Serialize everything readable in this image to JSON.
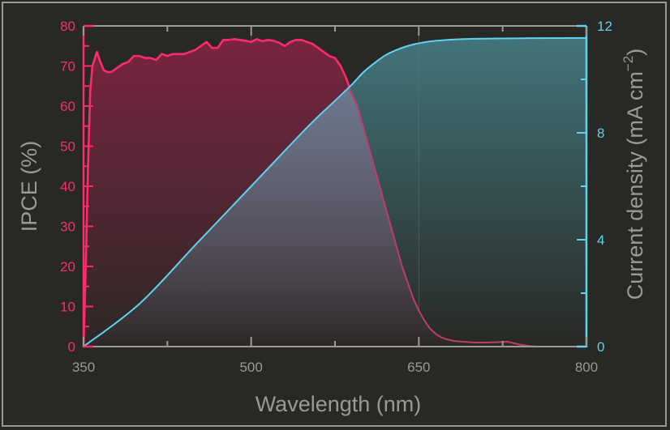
{
  "chart_data": {
    "type": "line",
    "title": "",
    "xlabel": "Wavelength (nm)",
    "ylabel_left": "IPCE (%)",
    "ylabel_right": "Current density (mA cm⁻²)",
    "ylabel_right_parts": {
      "base": "Current density (mA cm",
      "sup": "−2",
      "close": ")"
    },
    "xlim": [
      350,
      800
    ],
    "ylim_left": [
      0,
      80
    ],
    "ylim_right": [
      0,
      12
    ],
    "x_ticks": [
      350,
      500,
      650,
      800
    ],
    "x_minor_ticks": [
      425,
      575,
      725
    ],
    "y_left_ticks": [
      0,
      10,
      20,
      30,
      40,
      50,
      60,
      70,
      80
    ],
    "y_right_ticks": [
      0,
      4,
      8,
      12
    ],
    "y_right_minor_ticks": [
      2,
      6,
      10
    ],
    "grid": "vertical lines at major x ticks (500, 650)",
    "colors": {
      "background": "#282824",
      "ipce": "#ff2a6d",
      "ipce_fill_top": "#7a2440",
      "current": "#5fd3ee",
      "current_fill_top": "#3f7178",
      "axis": "#9a9a94"
    },
    "series": [
      {
        "name": "IPCE (%)",
        "axis": "left",
        "x": [
          350,
          352,
          354,
          356,
          358,
          362,
          365,
          368,
          371,
          375,
          380,
          385,
          390,
          395,
          400,
          405,
          410,
          415,
          420,
          425,
          430,
          435,
          440,
          445,
          450,
          455,
          460,
          465,
          470,
          475,
          480,
          485,
          490,
          495,
          500,
          505,
          510,
          515,
          520,
          525,
          530,
          535,
          540,
          545,
          550,
          555,
          560,
          565,
          570,
          575,
          580,
          585,
          590,
          595,
          600,
          605,
          610,
          615,
          620,
          625,
          630,
          635,
          640,
          645,
          650,
          655,
          660,
          665,
          670,
          675,
          680,
          685,
          690,
          695,
          700,
          710,
          720,
          730,
          740,
          750,
          755,
          760,
          770,
          780,
          790
        ],
        "values": [
          0,
          20,
          45,
          64,
          70,
          73.5,
          71,
          69,
          68.5,
          68.5,
          69.5,
          70.5,
          71,
          72.5,
          72.5,
          72,
          72,
          71.5,
          73,
          72.5,
          73,
          73,
          73,
          73.5,
          74,
          75,
          76,
          74.5,
          74.5,
          76.5,
          76.5,
          76.7,
          76.5,
          76.3,
          76,
          76.7,
          76.2,
          76.5,
          76.3,
          75.8,
          75,
          76,
          76.5,
          76.5,
          76,
          75.5,
          74.5,
          73.5,
          72.5,
          72,
          70,
          67,
          63,
          60,
          55,
          50,
          45,
          40,
          35,
          30,
          25,
          20,
          16,
          12,
          9,
          6.5,
          4.5,
          3.2,
          2.3,
          1.8,
          1.5,
          1.3,
          1.2,
          1.1,
          1.0,
          1.0,
          1.1,
          1.2,
          0.5,
          0.1,
          0,
          0,
          0,
          0,
          0
        ]
      },
      {
        "name": "Current density (mA cm⁻²)",
        "axis": "right",
        "x": [
          350,
          400,
          450,
          500,
          550,
          575,
          590,
          600,
          610,
          620,
          630,
          640,
          650,
          660,
          670,
          680,
          700,
          720,
          750,
          800
        ],
        "values": [
          0,
          1.6,
          3.8,
          6.0,
          8.2,
          9.2,
          9.8,
          10.25,
          10.6,
          10.9,
          11.1,
          11.25,
          11.35,
          11.42,
          11.46,
          11.49,
          11.52,
          11.53,
          11.54,
          11.55
        ]
      }
    ]
  }
}
